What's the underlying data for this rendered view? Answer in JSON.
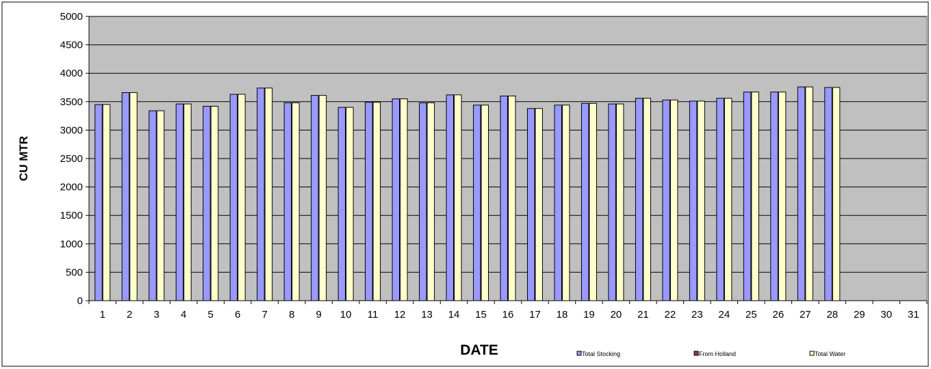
{
  "chart_data": {
    "type": "bar",
    "title": "",
    "xlabel": "DATE",
    "ylabel": "CU MTR",
    "ylim": [
      0,
      5000
    ],
    "yticks": [
      0,
      500,
      1000,
      1500,
      2000,
      2500,
      3000,
      3500,
      4000,
      4500,
      5000
    ],
    "grid": true,
    "legend_position": "bottom",
    "background_color": "#c0c0c0",
    "categories": [
      "1",
      "2",
      "3",
      "4",
      "5",
      "6",
      "7",
      "8",
      "9",
      "10",
      "11",
      "12",
      "13",
      "14",
      "15",
      "16",
      "17",
      "18",
      "19",
      "20",
      "21",
      "22",
      "23",
      "24",
      "25",
      "26",
      "27",
      "28",
      "29",
      "30",
      "31"
    ],
    "series": [
      {
        "name": "Total Stocking",
        "color": "#9999ff",
        "values": [
          3450,
          3660,
          3340,
          3460,
          3420,
          3630,
          3740,
          3480,
          3610,
          3400,
          3490,
          3550,
          3480,
          3620,
          3440,
          3600,
          3380,
          3440,
          3470,
          3460,
          3560,
          3530,
          3510,
          3560,
          3670,
          3670,
          3760,
          3750,
          null,
          null,
          null
        ]
      },
      {
        "name": "From Holland",
        "color": "#993366",
        "values": [
          0,
          0,
          0,
          0,
          0,
          0,
          0,
          0,
          0,
          0,
          0,
          0,
          0,
          0,
          0,
          0,
          0,
          0,
          0,
          0,
          0,
          0,
          0,
          0,
          0,
          0,
          0,
          0,
          null,
          null,
          null
        ]
      },
      {
        "name": "Total Water",
        "color": "#ffffcc",
        "values": [
          3450,
          3660,
          3340,
          3460,
          3420,
          3630,
          3740,
          3480,
          3610,
          3400,
          3490,
          3550,
          3480,
          3620,
          3440,
          3600,
          3380,
          3440,
          3470,
          3460,
          3560,
          3530,
          3510,
          3560,
          3670,
          3670,
          3760,
          3750,
          null,
          null,
          null
        ]
      }
    ]
  }
}
